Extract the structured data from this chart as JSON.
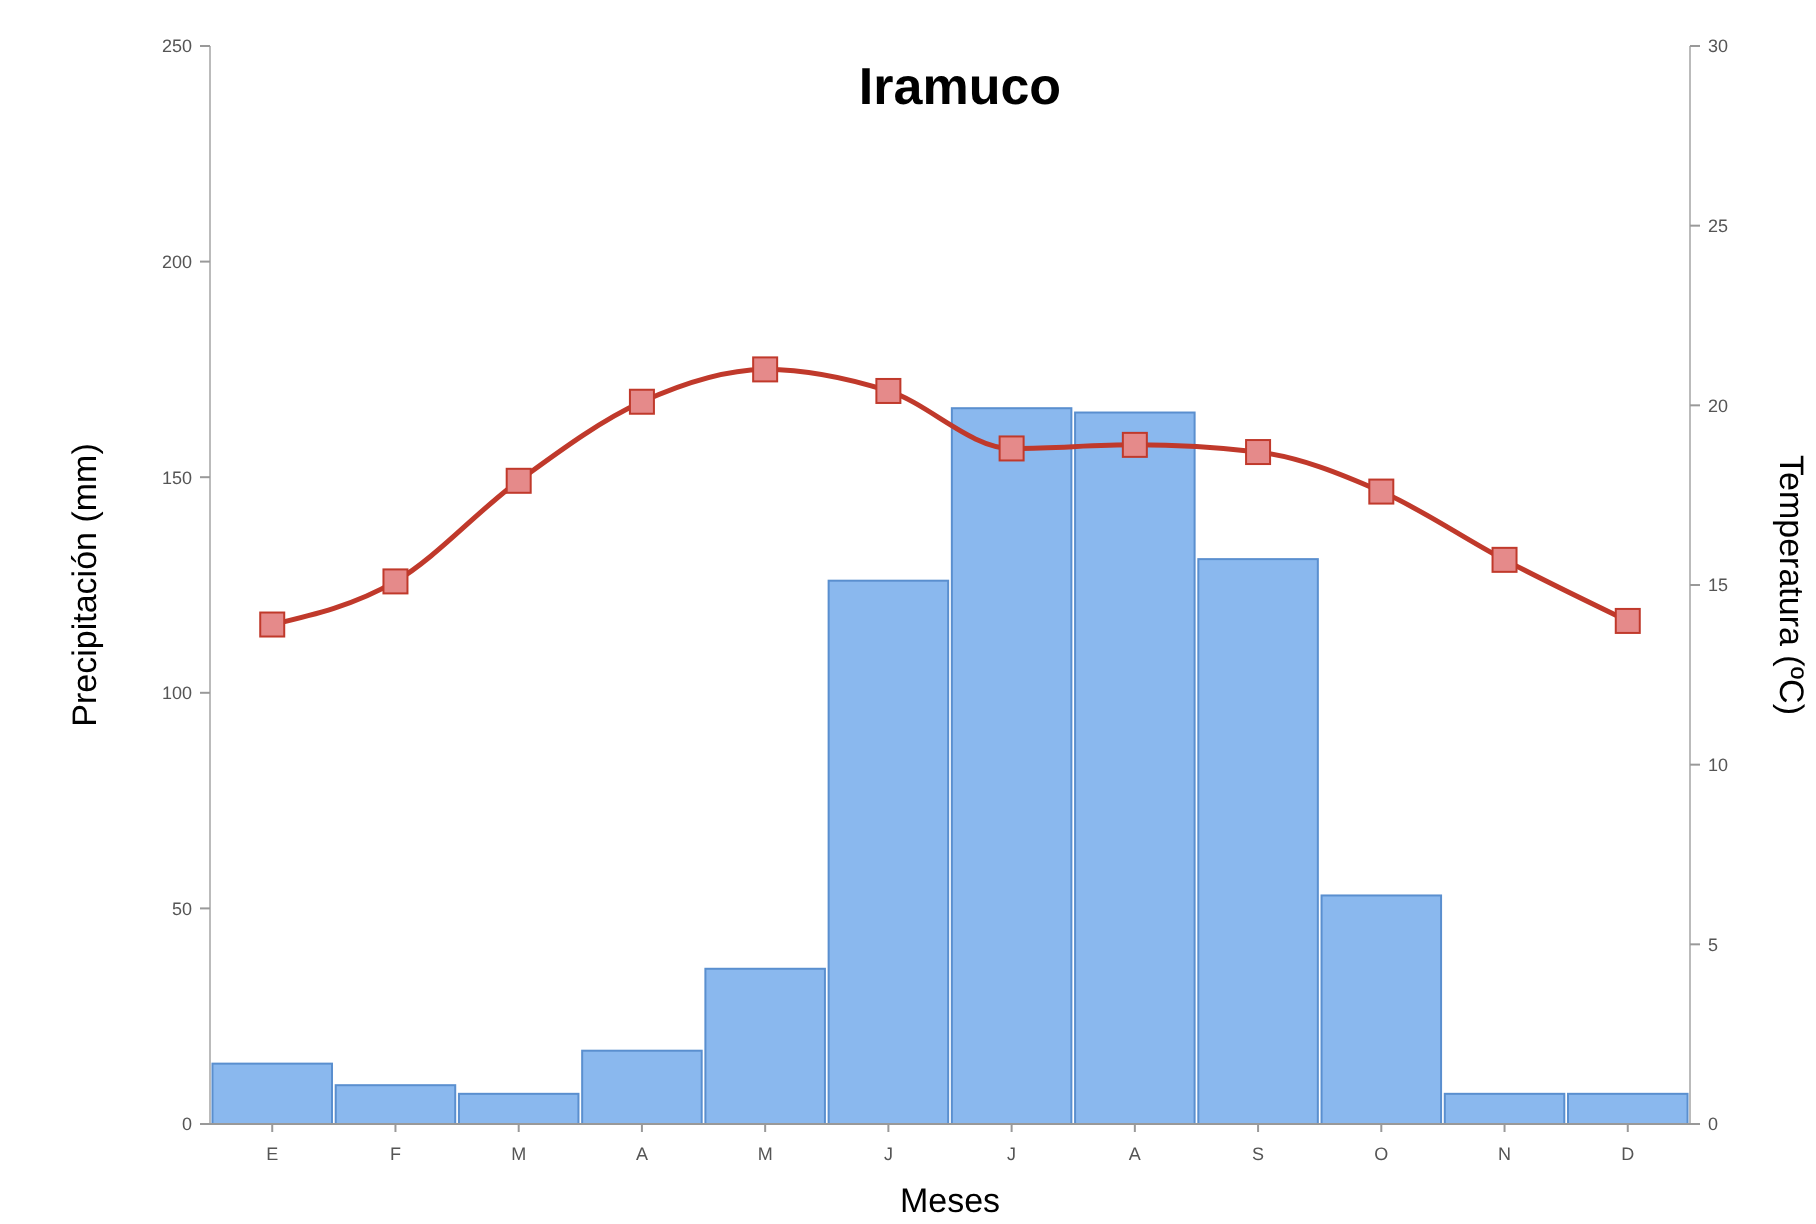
{
  "chart_data": {
    "type": "bar",
    "title": "Iramuco",
    "xlabel": "Meses",
    "ylabel": "Precipitación (mm)",
    "y2label": "Temperatura (ºC)",
    "categories": [
      "E",
      "F",
      "M",
      "A",
      "M",
      "J",
      "J",
      "A",
      "S",
      "O",
      "N",
      "D"
    ],
    "series": [
      {
        "color": "#8ab8ee",
        "values": [
          14,
          9,
          7,
          17,
          36,
          126,
          166,
          165,
          131,
          53,
          7,
          7
        ]
      },
      {
        "type": "line",
        "axis": "y2",
        "color": "#c0392b",
        "marker": "square",
        "values": [
          13.9,
          15.1,
          17.9,
          20.1,
          21.0,
          20.4,
          18.8,
          18.9,
          18.7,
          17.6,
          15.7,
          14.0
        ]
      }
    ],
    "ylim": [
      0,
      250
    ],
    "yticks": [
      0,
      50,
      100,
      150,
      200,
      250
    ],
    "y2lim": [
      0,
      30
    ],
    "y2ticks": [
      0,
      5,
      10,
      15,
      20,
      25,
      30
    ],
    "grid": false
  }
}
